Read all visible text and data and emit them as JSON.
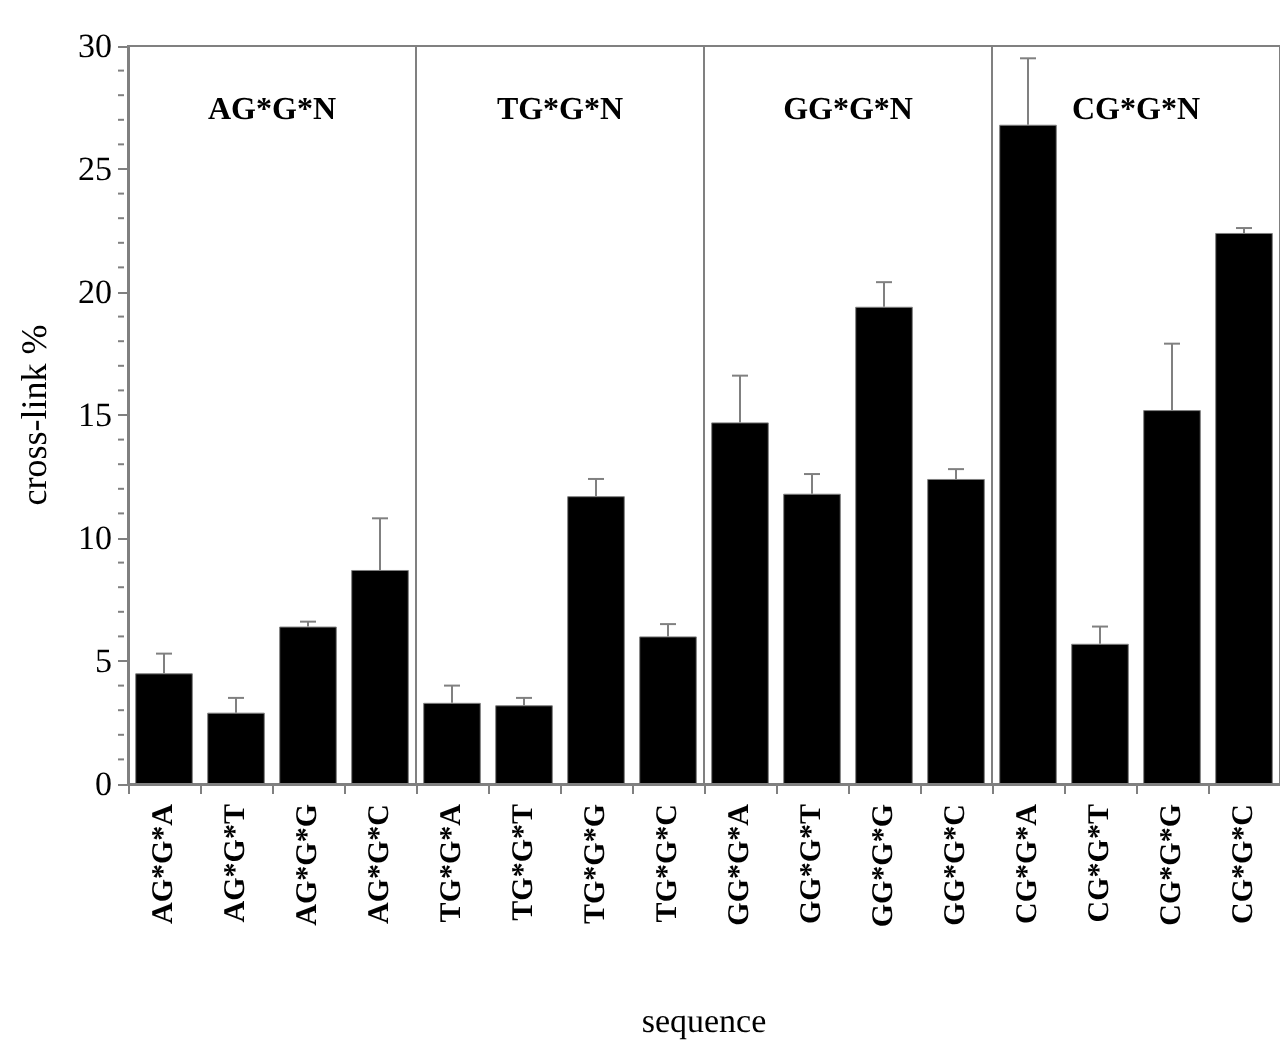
{
  "chart_data": {
    "type": "bar",
    "xlabel": "sequence",
    "ylabel": "cross-link %",
    "categories": [
      "AG*G*A",
      "AG*G*T",
      "AG*G*G",
      "AG*G*C",
      "TG*G*A",
      "TG*G*T",
      "TG*G*G",
      "TG*G*C",
      "GG*G*A",
      "GG*G*T",
      "GG*G*G",
      "GG*G*C",
      "CG*G*A",
      "CG*G*T",
      "CG*G*G",
      "CG*G*C"
    ],
    "values": [
      4.5,
      2.9,
      6.4,
      8.7,
      3.3,
      3.2,
      11.7,
      6.0,
      14.7,
      11.8,
      19.4,
      12.4,
      26.8,
      5.7,
      15.2,
      22.4
    ],
    "errors": [
      [
        4.5,
        5.3
      ],
      [
        2.9,
        3.5
      ],
      [
        6.4,
        6.6
      ],
      [
        8.7,
        10.8
      ],
      [
        3.3,
        4.0
      ],
      [
        3.2,
        3.5
      ],
      [
        11.7,
        12.4
      ],
      [
        6.0,
        6.5
      ],
      [
        14.7,
        16.6
      ],
      [
        11.8,
        12.6
      ],
      [
        19.4,
        20.4
      ],
      [
        12.4,
        12.8
      ],
      [
        26.8,
        29.5
      ],
      [
        5.7,
        6.4
      ],
      [
        15.2,
        17.9
      ],
      [
        22.4,
        22.6
      ]
    ],
    "color": "#000000",
    "ylim": [
      0,
      30
    ],
    "yticks": [
      0,
      5,
      10,
      15,
      20,
      25,
      30
    ],
    "grid": false,
    "annotations": [
      "AG*G*N",
      "TG*G*N",
      "GG*G*N",
      "CG*G*N"
    ]
  }
}
